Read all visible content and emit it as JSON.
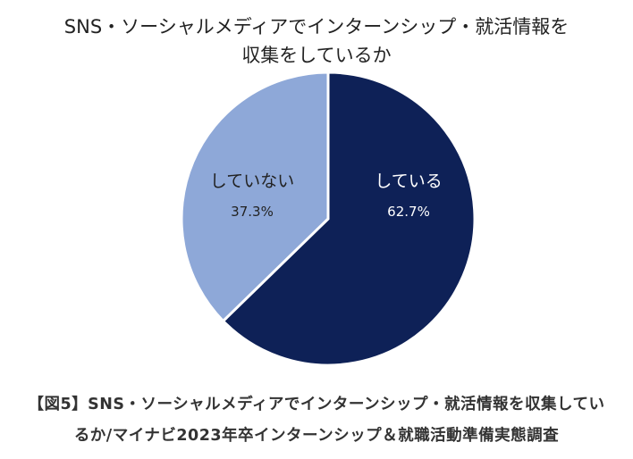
{
  "chart_data": {
    "type": "pie",
    "title_lines": [
      "SNS・ソーシャルメディアでインターンシップ・就活情報を",
      "収集をしているか"
    ],
    "categories": [
      "している",
      "していない"
    ],
    "values": [
      62.7,
      37.3
    ],
    "value_labels": [
      "62.7%",
      "37.3%"
    ],
    "colors": [
      "#0e2157",
      "#8ea8d8"
    ],
    "start_angle_deg": 0,
    "direction": "clockwise"
  },
  "caption": {
    "line1": "【図5】SNS・ソーシャルメディアでインターンシップ・就活情報を収集してい",
    "line2": "るか/マイナビ2023年卒インターンシップ＆就職活動準備実態調査"
  }
}
